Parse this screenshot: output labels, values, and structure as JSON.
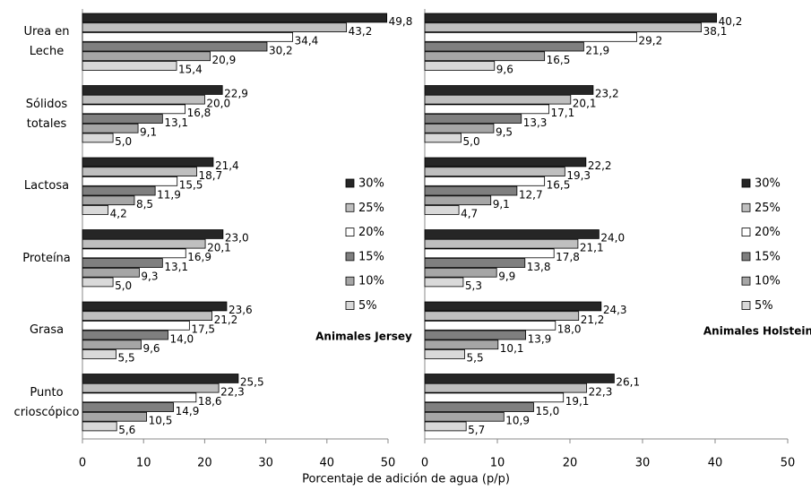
{
  "chart_data": [
    {
      "type": "bar",
      "orientation": "horizontal",
      "title": "Animales Jersey",
      "xlabel": "Porcentaje de adición de agua (p/p)",
      "categories": [
        "Urea en Leche",
        "Sólidos totales",
        "Lactosa",
        "Proteína",
        "Grasa",
        "Punto crioscópico"
      ],
      "xlim": [
        0,
        50
      ],
      "xticks": [
        0,
        10,
        20,
        30,
        40,
        50
      ],
      "legend": "right",
      "series": [
        {
          "name": "30%",
          "color": "#262626",
          "values": [
            49.8,
            22.9,
            21.4,
            23.0,
            23.6,
            25.5
          ],
          "value_labels": [
            "49,8",
            "22,9",
            "21,4",
            "23,0",
            "23,6",
            "25,5"
          ]
        },
        {
          "name": "25%",
          "color": "#bfbfbf",
          "values": [
            43.2,
            20.0,
            18.7,
            20.1,
            21.2,
            22.3
          ],
          "value_labels": [
            "43,2",
            "20,0",
            "18,7",
            "20,1",
            "21,2",
            "22,3"
          ]
        },
        {
          "name": "20%",
          "color": "#ffffff",
          "values": [
            34.4,
            16.8,
            15.5,
            16.9,
            17.5,
            18.6
          ],
          "value_labels": [
            "34,4",
            "16,8",
            "15,5",
            "16,9",
            "17,5",
            "18,6"
          ]
        },
        {
          "name": "15%",
          "color": "#7f7f7f",
          "values": [
            30.2,
            13.1,
            11.9,
            13.1,
            14.0,
            14.9
          ],
          "value_labels": [
            "30,2",
            "13,1",
            "11,9",
            "13,1",
            "14,0",
            "14,9"
          ]
        },
        {
          "name": "10%",
          "color": "#a6a6a6",
          "values": [
            20.9,
            9.1,
            8.5,
            9.3,
            9.6,
            10.5
          ],
          "value_labels": [
            "20,9",
            "9,1",
            "8,5",
            "9,3",
            "9,6",
            "10,5"
          ]
        },
        {
          "name": "5%",
          "color": "#d9d9d9",
          "values": [
            15.4,
            5.0,
            4.2,
            5.0,
            5.5,
            5.6
          ],
          "value_labels": [
            "15,4",
            "5,0",
            "4,2",
            "5,0",
            "5,5",
            "5,6"
          ]
        }
      ]
    },
    {
      "type": "bar",
      "orientation": "horizontal",
      "title": "Animales Holstein",
      "xlim": [
        0,
        50
      ],
      "xticks": [
        0,
        10,
        20,
        30,
        40,
        50
      ],
      "legend": "right",
      "series": [
        {
          "name": "30%",
          "color": "#262626",
          "values": [
            40.2,
            23.2,
            22.2,
            24.0,
            24.3,
            26.1
          ],
          "value_labels": [
            "40,2",
            "23,2",
            "22,2",
            "24,0",
            "24,3",
            "26,1"
          ]
        },
        {
          "name": "25%",
          "color": "#bfbfbf",
          "values": [
            38.1,
            20.1,
            19.3,
            21.1,
            21.2,
            22.3
          ],
          "value_labels": [
            "38,1",
            "20,1",
            "19,3",
            "21,1",
            "21,2",
            "22,3"
          ]
        },
        {
          "name": "20%",
          "color": "#ffffff",
          "values": [
            29.2,
            17.1,
            16.5,
            17.8,
            18.0,
            19.1
          ],
          "value_labels": [
            "29,2",
            "17,1",
            "16,5",
            "17,8",
            "18,0",
            "19,1"
          ]
        },
        {
          "name": "15%",
          "color": "#7f7f7f",
          "values": [
            21.9,
            13.3,
            12.7,
            13.8,
            13.9,
            15.0
          ],
          "value_labels": [
            "21,9",
            "13,3",
            "12,7",
            "13,8",
            "13,9",
            "15,0"
          ]
        },
        {
          "name": "10%",
          "color": "#a6a6a6",
          "values": [
            16.5,
            9.5,
            9.1,
            9.9,
            10.1,
            10.9
          ],
          "value_labels": [
            "16,5",
            "9,5",
            "9,1",
            "9,9",
            "10,1",
            "10,9"
          ]
        },
        {
          "name": "5%",
          "color": "#d9d9d9",
          "values": [
            9.6,
            5.0,
            4.7,
            5.3,
            5.5,
            5.7
          ],
          "value_labels": [
            "9,6",
            "5,0",
            "4,7",
            "5,3",
            "5,5",
            "5,7"
          ]
        }
      ]
    }
  ]
}
